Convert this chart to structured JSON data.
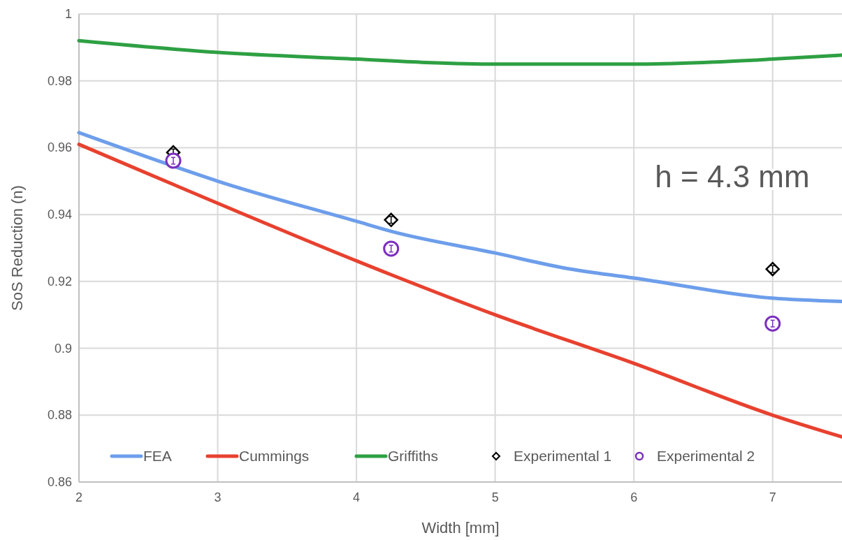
{
  "chart_data": {
    "type": "line",
    "xlabel": "Width [mm]",
    "ylabel": "SoS Reduction (n)",
    "annotations": [
      "h = 4.3 mm"
    ],
    "xlim": [
      2,
      7.5
    ],
    "xticks": [
      2,
      3,
      4,
      5,
      6,
      7
    ],
    "ylim": [
      0.86,
      1
    ],
    "yticks": [
      0.86,
      0.88,
      0.9,
      0.92,
      0.94,
      0.96,
      0.98,
      1
    ],
    "grid": true,
    "legend": "bottom",
    "series": [
      {
        "name": "FEA",
        "color": "#6d9eeb",
        "x": [
          2,
          2.68,
          3,
          4,
          4.25,
          5,
          5.5,
          6,
          7,
          7.5
        ],
        "values": [
          0.9645,
          0.9545,
          0.95,
          0.938,
          0.935,
          0.9285,
          0.924,
          0.921,
          0.915,
          0.914
        ]
      },
      {
        "name": "Cummings",
        "color": "#e8412f",
        "x": [
          2,
          2.68,
          4.25,
          5,
          6,
          7,
          7.5
        ],
        "values": [
          0.961,
          0.949,
          0.922,
          0.91,
          0.8955,
          0.88,
          0.8735
        ]
      },
      {
        "name": "Griffiths",
        "color": "#2ea043",
        "x": [
          2,
          3,
          4,
          4.5,
          5,
          6,
          6.5,
          7,
          7.5
        ],
        "values": [
          0.992,
          0.9885,
          0.9865,
          0.9855,
          0.985,
          0.985,
          0.9855,
          0.9865,
          0.9877
        ]
      },
      {
        "name": "Experimental 1",
        "type": "scatter",
        "marker": "diamond",
        "color": "#000000",
        "x": [
          2.68,
          4.25,
          7
        ],
        "values": [
          0.9586,
          0.9384,
          0.9237
        ],
        "errors": [
          0.001,
          0.001,
          0.001
        ]
      },
      {
        "name": "Experimental 2",
        "type": "scatter",
        "marker": "circle",
        "color": "#7b2fbe",
        "x": [
          2.68,
          4.25,
          7
        ],
        "values": [
          0.9561,
          0.9298,
          0.9074
        ],
        "errors": [
          0.001,
          0.001,
          0.001
        ]
      }
    ]
  }
}
